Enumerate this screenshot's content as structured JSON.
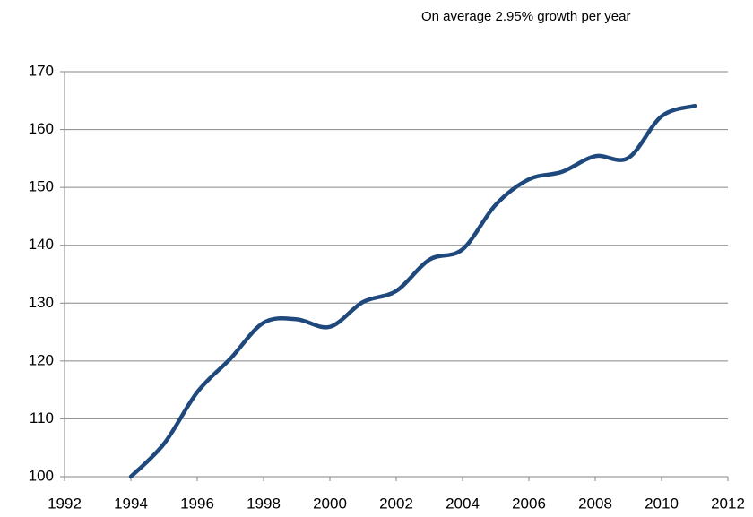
{
  "chart_data": {
    "type": "line",
    "annotation": "On average 2.95% growth per year",
    "x": [
      1994,
      1995,
      1996,
      1997,
      1998,
      1999,
      2000,
      2001,
      2002,
      2003,
      2004,
      2005,
      2006,
      2007,
      2008,
      2009,
      2010,
      2011
    ],
    "series": [
      {
        "color": "#1f497d",
        "values": [
          100,
          105.7,
          114.6,
          120.4,
          126.6,
          127.2,
          125.9,
          130.2,
          132.1,
          137.5,
          139.3,
          147,
          151.4,
          152.7,
          155.4,
          155.1,
          162.3,
          164.1
        ]
      }
    ],
    "xlim": [
      1992,
      2012
    ],
    "xticks": [
      1992,
      1994,
      1996,
      1998,
      2000,
      2002,
      2004,
      2006,
      2008,
      2010,
      2012
    ],
    "ylim": [
      100,
      170
    ],
    "yticks": [
      100,
      110,
      120,
      130,
      140,
      150,
      160,
      170
    ],
    "grid": true
  }
}
